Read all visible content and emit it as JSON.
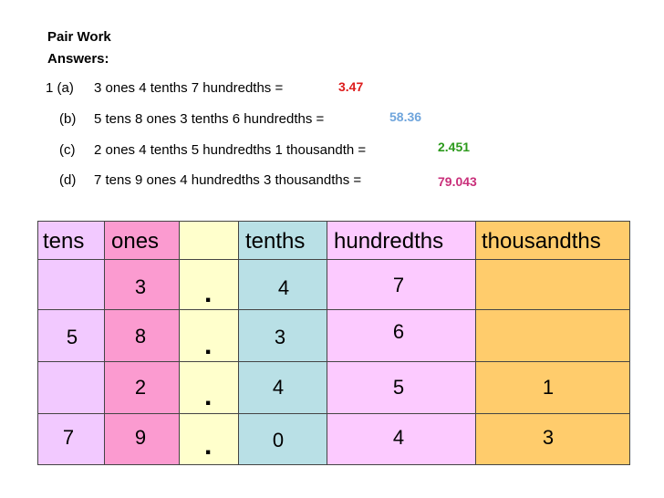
{
  "header": {
    "line1": "Pair Work",
    "line2": "Answers:"
  },
  "questions": [
    {
      "label": "1 (a)",
      "text": "3 ones 4 tenths 7 hundredths =",
      "answer": "3.47",
      "answer_color": "#dd1c1c"
    },
    {
      "label": "(b)",
      "text": "5 tens 8 ones 3 tenths 6 hundredths =",
      "answer": "58.36",
      "answer_color": "#6fa5dc"
    },
    {
      "label": "(c)",
      "text": "2 ones 4 tenths 5 hundredths 1 thousandth =",
      "answer": "2.451",
      "answer_color": "#2c9a1c"
    },
    {
      "label": "(d)",
      "text": "7 tens 9 ones 4 hundredths 3 thousandths =",
      "answer": "79.043",
      "answer_color": "#c92f7a"
    }
  ],
  "table": {
    "headers": {
      "tens": "tens",
      "ones": "ones",
      "point": "",
      "tenths": "tenths",
      "hundredths": "hundredths",
      "thousandths": "thousandths"
    },
    "colors": {
      "tens": "#f2c9ff",
      "ones": "#fb9bd0",
      "point": "#ffffcc",
      "tenths": "#b9e0e6",
      "hundredths": "#fccaff",
      "thousandths": "#ffcc6c"
    },
    "decimal_point": ".",
    "rows": [
      {
        "tens": "",
        "ones": "3",
        "tenths": "4",
        "hundredths": "7",
        "thousandths": ""
      },
      {
        "tens": "5",
        "ones": "8",
        "tenths": "3",
        "hundredths": "6",
        "thousandths": ""
      },
      {
        "tens": "",
        "ones": "2",
        "tenths": "4",
        "hundredths": "5",
        "thousandths": "1"
      },
      {
        "tens": "7",
        "ones": "9",
        "tenths": "0",
        "hundredths": "4",
        "thousandths": "3"
      }
    ]
  }
}
